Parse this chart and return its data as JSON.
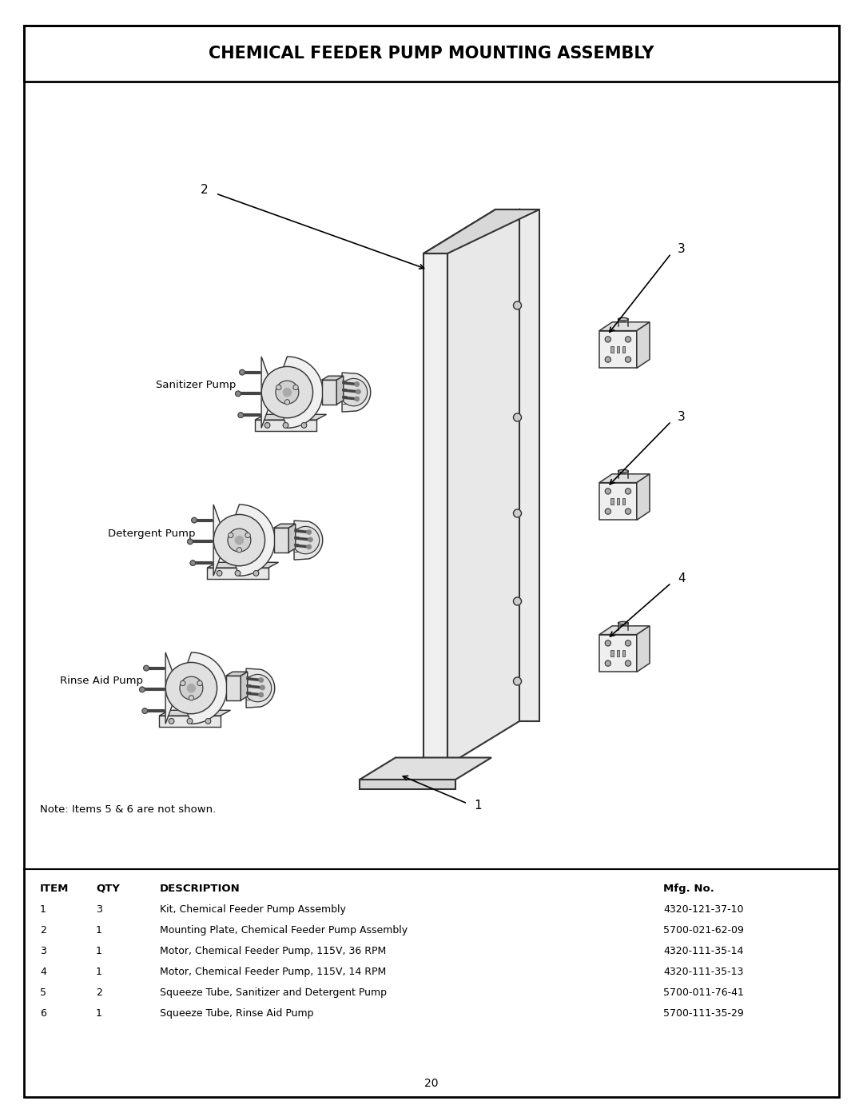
{
  "title": "CHEMICAL FEEDER PUMP MOUNTING ASSEMBLY",
  "page_number": "20",
  "note": "Note: Items 5 & 6 are not shown.",
  "table_headers": [
    "ITEM",
    "QTY",
    "DESCRIPTION",
    "Mfg. No."
  ],
  "table_rows": [
    [
      "1",
      "3",
      "Kit, Chemical Feeder Pump Assembly",
      "4320-121-37-10"
    ],
    [
      "2",
      "1",
      "Mounting Plate, Chemical Feeder Pump Assembly",
      "5700-021-62-09"
    ],
    [
      "3",
      "1",
      "Motor, Chemical Feeder Pump, 115V, 36 RPM",
      "4320-111-35-14"
    ],
    [
      "4",
      "1",
      "Motor, Chemical Feeder Pump, 115V, 14 RPM",
      "4320-111-35-13"
    ],
    [
      "5",
      "2",
      "Squeeze Tube, Sanitizer and Detergent Pump",
      "5700-011-76-41"
    ],
    [
      "6",
      "1",
      "Squeeze Tube, Rinse Aid Pump",
      "5700-111-35-29"
    ]
  ],
  "pump_labels": [
    "Sanitizer Pump",
    "Detergent Pump",
    "Rinse Aid Pump"
  ],
  "item_labels": {
    "1": "1",
    "2": "2",
    "3a": "3",
    "3b": "3",
    "4": "4"
  },
  "bg_color": "#ffffff",
  "border_color": "#000000",
  "line_color": "#333333",
  "light_gray": "#e8e8e8",
  "mid_gray": "#c8c8c8",
  "dark_gray": "#888888"
}
